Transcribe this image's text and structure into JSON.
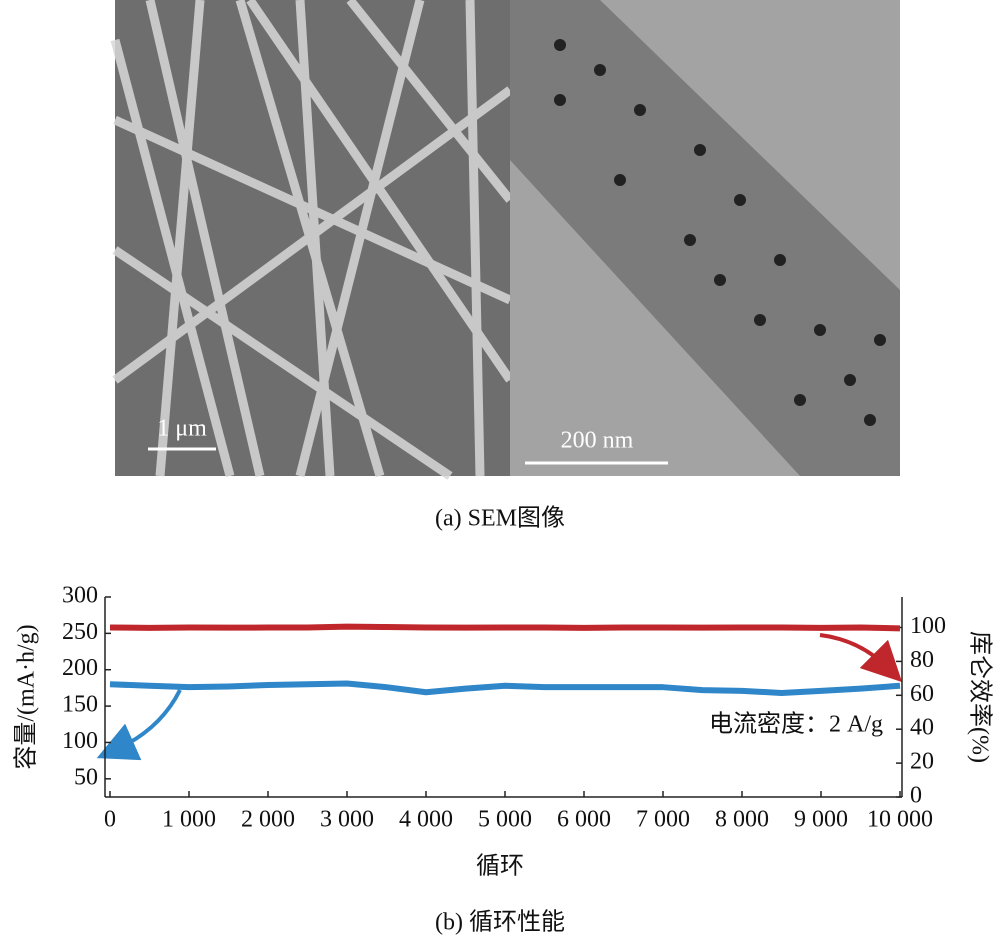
{
  "figure": {
    "scalebar_left": "1 μm",
    "scalebar_right": "200 nm",
    "caption_a": "(a) SEM图像",
    "caption_b": "(b) 循环性能"
  },
  "chart_data": {
    "type": "line",
    "xlabel": "循环",
    "ylabel": "容量/(mA·h/g)",
    "y2label": "库仑效率(%)",
    "annotation": "电流密度：2 A/g",
    "xlim": [
      0,
      10000
    ],
    "xticks": [
      0,
      {
        "value": 1000,
        "label": "1 000"
      },
      {
        "value": 2000,
        "label": "2 000"
      },
      {
        "value": 3000,
        "label": "3 000"
      },
      {
        "value": 4000,
        "label": "4 000"
      },
      {
        "value": 5000,
        "label": "5 000"
      },
      {
        "value": 6000,
        "label": "6 000"
      },
      {
        "value": 7000,
        "label": "7 000"
      },
      {
        "value": 8000,
        "label": "8 000"
      },
      {
        "value": 9000,
        "label": "9 000"
      },
      {
        "value": 10000,
        "label": "10 000"
      }
    ],
    "ylim": [
      25,
      300
    ],
    "yticks": [
      50,
      100,
      150,
      200,
      250,
      300
    ],
    "y2lim": [
      0,
      118
    ],
    "y2ticks": [
      0,
      20,
      40,
      60,
      80,
      100
    ],
    "series": [
      {
        "color": "#2f86c8",
        "x": [
          0,
          500,
          1000,
          1500,
          2000,
          2500,
          3000,
          3500,
          4000,
          4500,
          5000,
          5500,
          6000,
          6500,
          7000,
          7500,
          8000,
          8500,
          9000,
          9500,
          10000
        ],
        "values": [
          180,
          178,
          176,
          177,
          179,
          180,
          181,
          176,
          169,
          174,
          178,
          176,
          176,
          176,
          176,
          172,
          171,
          168,
          171,
          174,
          178
        ]
      },
      {
        "color": "#c0272d",
        "axis": "y2",
        "x": [
          0,
          500,
          1000,
          1500,
          2000,
          2500,
          3000,
          3500,
          4000,
          4500,
          5000,
          5500,
          6000,
          6500,
          7000,
          7500,
          8000,
          8500,
          9000,
          9500,
          10000
        ],
        "values": [
          100,
          99.8,
          100,
          99.9,
          100,
          100,
          100.5,
          100.3,
          100,
          99.9,
          100,
          100,
          99.8,
          100,
          100,
          99.9,
          100,
          100,
          99.8,
          100,
          99.5
        ]
      }
    ]
  }
}
